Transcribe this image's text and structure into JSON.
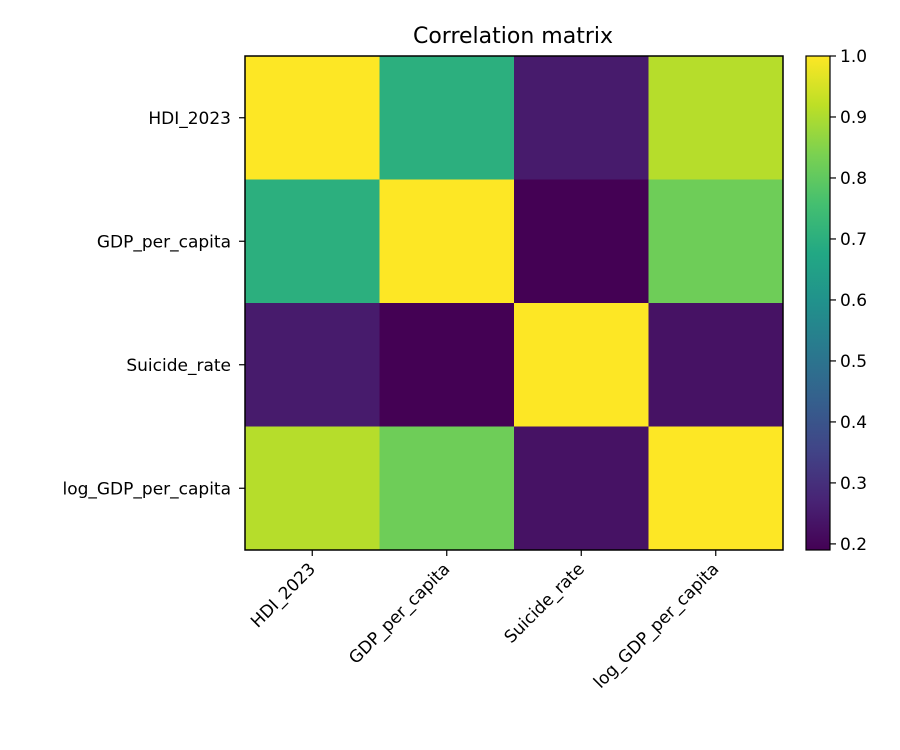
{
  "chart_data": {
    "type": "heatmap",
    "title": "Correlation matrix",
    "rows": [
      "HDI_2023",
      "GDP_per_capita",
      "Suicide_rate",
      "log_GDP_per_capita"
    ],
    "columns": [
      "HDI_2023",
      "GDP_per_capita",
      "Suicide_rate",
      "log_GDP_per_capita"
    ],
    "values": [
      [
        1.0,
        0.7,
        0.25,
        0.91
      ],
      [
        0.7,
        1.0,
        0.19,
        0.82
      ],
      [
        0.25,
        0.19,
        1.0,
        0.23
      ],
      [
        0.91,
        0.82,
        0.23,
        1.0
      ]
    ],
    "colormap": "viridis",
    "colorbar": {
      "vmin": 0.19,
      "vmax": 1.0,
      "ticks": [
        0.2,
        0.3,
        0.4,
        0.5,
        0.6,
        0.7,
        0.8,
        0.9,
        1.0
      ],
      "tick_labels": [
        "0.2",
        "0.3",
        "0.4",
        "0.5",
        "0.6",
        "0.7",
        "0.8",
        "0.9",
        "1.0"
      ],
      "placement": "right"
    },
    "grid": false
  }
}
